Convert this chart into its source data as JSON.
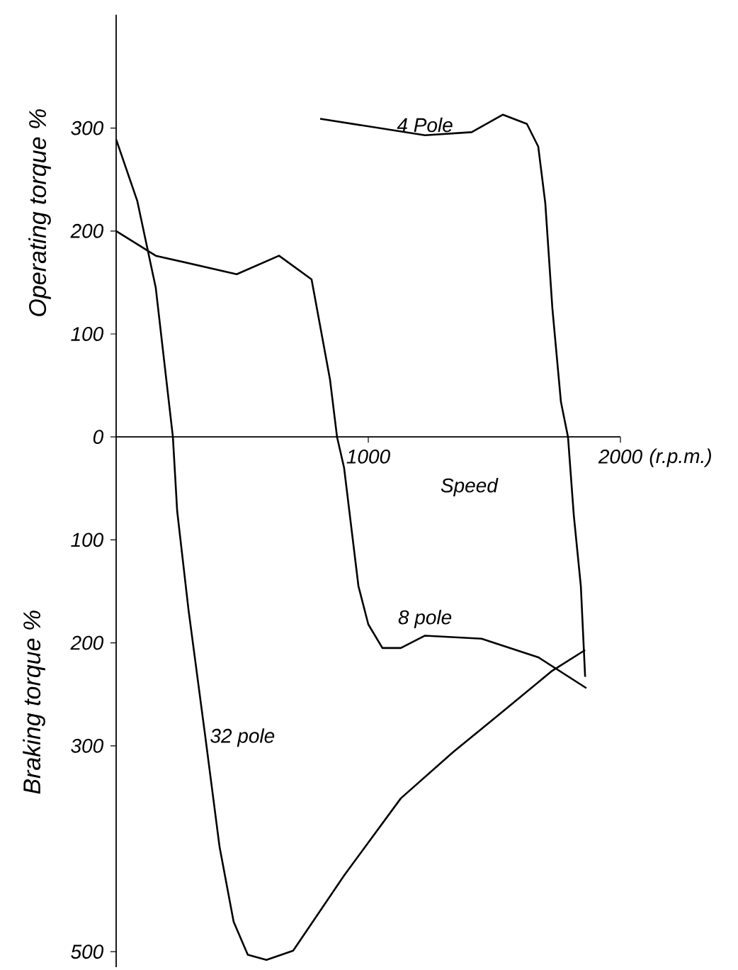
{
  "chart_data": {
    "type": "line",
    "xlabel": "Speed",
    "ylabel": "Operating torque %",
    "annotations": [
      "Braking torque %",
      "(r.p.m.)"
    ],
    "xlim": [
      0,
      2000
    ],
    "ylim": [
      -515,
      410
    ],
    "xticks": [
      {
        "value": 1000,
        "label": "1000"
      },
      2000
    ],
    "yticks": [
      {
        "value": -500,
        "label": "500"
      },
      {
        "value": -300,
        "label": "300"
      },
      {
        "value": -200,
        "label": "200"
      },
      {
        "value": -100,
        "label": "100"
      },
      0,
      100,
      200,
      300
    ],
    "grid": false,
    "legend": false,
    "marker": "none",
    "line_style": "solid",
    "series": [
      {
        "name": "4 Pole",
        "color": "#000000",
        "x": [
          809,
          1225,
          1410,
          1534,
          1629,
          1674,
          1702,
          1730,
          1764,
          1792,
          1815,
          1843,
          1860
        ],
        "values": [
          309,
          293,
          296,
          313,
          304,
          282,
          227,
          125,
          34,
          0,
          -76,
          -145,
          -233
        ]
      },
      {
        "name": "8 pole",
        "color": "#000000",
        "x": [
          0,
          157,
          478,
          646,
          775,
          848,
          876,
          904,
          961,
          1000,
          1056,
          1129,
          1225,
          1449,
          1674,
          1865
        ],
        "values": [
          200,
          176,
          158,
          176,
          153,
          56,
          0,
          -30,
          -145,
          -182,
          -205,
          -205,
          -193,
          -196,
          -214,
          -244
        ]
      },
      {
        "name": "32 pole",
        "color": "#000000",
        "x": [
          0,
          84,
          157,
          225,
          242,
          287,
          354,
          410,
          466,
          522,
          596,
          702,
          904,
          1129,
          1337,
          1522,
          1730,
          1860
        ],
        "values": [
          289,
          229,
          145,
          0,
          -72,
          -168,
          -292,
          -398,
          -471,
          -503,
          -508,
          -499,
          -426,
          -351,
          -306,
          -269,
          -227,
          -207
        ]
      }
    ]
  }
}
